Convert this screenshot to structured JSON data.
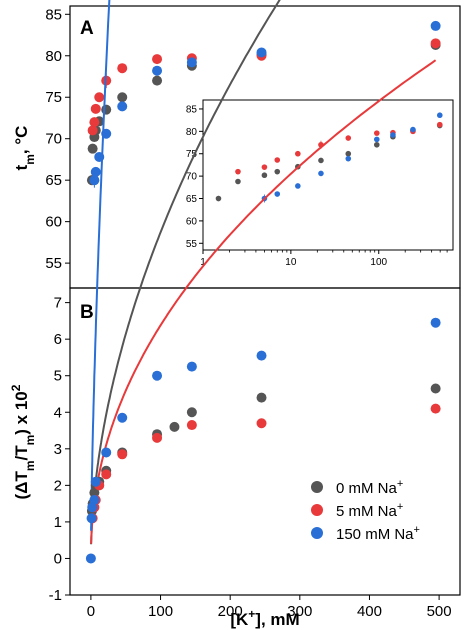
{
  "chart_data": [
    {
      "panel": "A",
      "type": "scatter",
      "xlabel": "",
      "ylabel": "t_m, °C",
      "ylim": [
        52,
        86
      ],
      "yticks": [
        55,
        60,
        65,
        70,
        75,
        80,
        85
      ],
      "series": [
        {
          "color": "#555555",
          "points": [
            [
              1.5,
              65.0
            ],
            [
              2.5,
              68.8
            ],
            [
              5,
              70.2
            ],
            [
              7,
              71.0
            ],
            [
              12,
              72.1
            ],
            [
              22,
              73.5
            ],
            [
              45,
              75.0
            ],
            [
              95,
              77.0
            ],
            [
              145,
              78.8
            ],
            [
              245,
              80.2
            ],
            [
              495,
              81.3
            ]
          ],
          "err": [
            0.6,
            0.4,
            0.4,
            0.4,
            0.4,
            0.4,
            0.5,
            0.5,
            0.4,
            0.4,
            0.4
          ]
        },
        {
          "color": "#e8393b",
          "points": [
            [
              2.5,
              71.0
            ],
            [
              5,
              72.0
            ],
            [
              7,
              73.6
            ],
            [
              12,
              75.0
            ],
            [
              22,
              77.0
            ],
            [
              45,
              78.5
            ],
            [
              95,
              79.6
            ],
            [
              145,
              79.7
            ],
            [
              245,
              80.0
            ],
            [
              495,
              81.5
            ]
          ],
          "err": [
            0.5,
            0.4,
            0.4,
            0.4,
            0.9,
            0.4,
            0.4,
            0.4,
            0.4,
            0.4
          ]
        },
        {
          "color": "#2a6fd6",
          "points": [
            [
              5,
              65.0
            ],
            [
              7,
              66.0
            ],
            [
              12,
              67.8
            ],
            [
              22,
              70.6
            ],
            [
              45,
              73.9
            ],
            [
              95,
              78.2
            ],
            [
              145,
              79.2
            ],
            [
              245,
              80.4
            ],
            [
              495,
              83.6
            ]
          ],
          "err": [
            0.9,
            0.4,
            0.4,
            0.5,
            0.4,
            0.4,
            0.4,
            0.4,
            0.4
          ]
        }
      ]
    },
    {
      "panel": "A-inset",
      "type": "scatter",
      "xscale": "log",
      "xlim": [
        1,
        700
      ],
      "ylim": [
        53.5,
        87
      ],
      "xticks": [
        1,
        10,
        100
      ],
      "yticks": [
        55,
        60,
        65,
        70,
        75,
        80,
        85
      ]
    },
    {
      "panel": "B",
      "type": "scatter",
      "xlabel": "[K+], mM",
      "ylabel": "(ΔTm/Tm) x 10²",
      "xlim": [
        -30,
        530
      ],
      "ylim": [
        -1,
        7.4
      ],
      "xticks": [
        0,
        100,
        200,
        300,
        400,
        500
      ],
      "yticks": [
        -1,
        0,
        1,
        2,
        3,
        4,
        5,
        6,
        7
      ],
      "legend": "bottom-right",
      "series": [
        {
          "name": "0 mM Na+",
          "color": "#555555",
          "points": [
            [
              1.5,
              1.3
            ],
            [
              2.5,
              1.5
            ],
            [
              5,
              1.8
            ],
            [
              7,
              2.0
            ],
            [
              12,
              2.1
            ],
            [
              22,
              2.4
            ],
            [
              45,
              2.9
            ],
            [
              95,
              3.4
            ],
            [
              120,
              3.6
            ],
            [
              145,
              4.0
            ],
            [
              245,
              4.4
            ],
            [
              495,
              4.65
            ]
          ],
          "fit": {
            "a": 1.4,
            "b": 0.54
          }
        },
        {
          "name": "5 mM Na+",
          "color": "#e8393b",
          "points": [
            [
              2.5,
              1.1
            ],
            [
              5,
              1.4
            ],
            [
              7,
              1.6
            ],
            [
              12,
              2.0
            ],
            [
              22,
              2.3
            ],
            [
              45,
              2.85
            ],
            [
              95,
              3.3
            ],
            [
              145,
              3.65
            ],
            [
              245,
              3.7
            ],
            [
              495,
              4.1
            ]
          ],
          "fit": {
            "a": 1.35,
            "b": 0.475
          }
        },
        {
          "name": "150 mM Na+",
          "color": "#2a6fd6",
          "points": [
            [
              0,
              0.0
            ],
            [
              1,
              1.1
            ],
            [
              2,
              1.4
            ],
            [
              5,
              1.6
            ],
            [
              7,
              2.1
            ],
            [
              22,
              2.9
            ],
            [
              45,
              3.85
            ],
            [
              95,
              5.0
            ],
            [
              145,
              5.25
            ],
            [
              245,
              5.55
            ],
            [
              495,
              6.45
            ]
          ],
          "fit": {
            "a": 2.3,
            "b": 0.67
          }
        }
      ]
    }
  ],
  "labels": {
    "panel_a": "A",
    "panel_b": "B",
    "ylabel_a_main": "t",
    "ylabel_a_sub": "m",
    "ylabel_a_tail": ", °C",
    "ylabel_b_pre": "(ΔT",
    "ylabel_b_sub1": "m",
    "ylabel_b_mid": "/T",
    "ylabel_b_sub2": "m",
    "ylabel_b_post": ") x 10",
    "ylabel_b_sup": "2",
    "xlabel_b_pre": "[K",
    "xlabel_b_sup": "+",
    "xlabel_b_post": "], mM",
    "legend": [
      {
        "pre": "0 mM Na",
        "sup": "+"
      },
      {
        "pre": "5 mM Na",
        "sup": "+"
      },
      {
        "pre": "150 mM Na",
        "sup": "+"
      }
    ]
  }
}
